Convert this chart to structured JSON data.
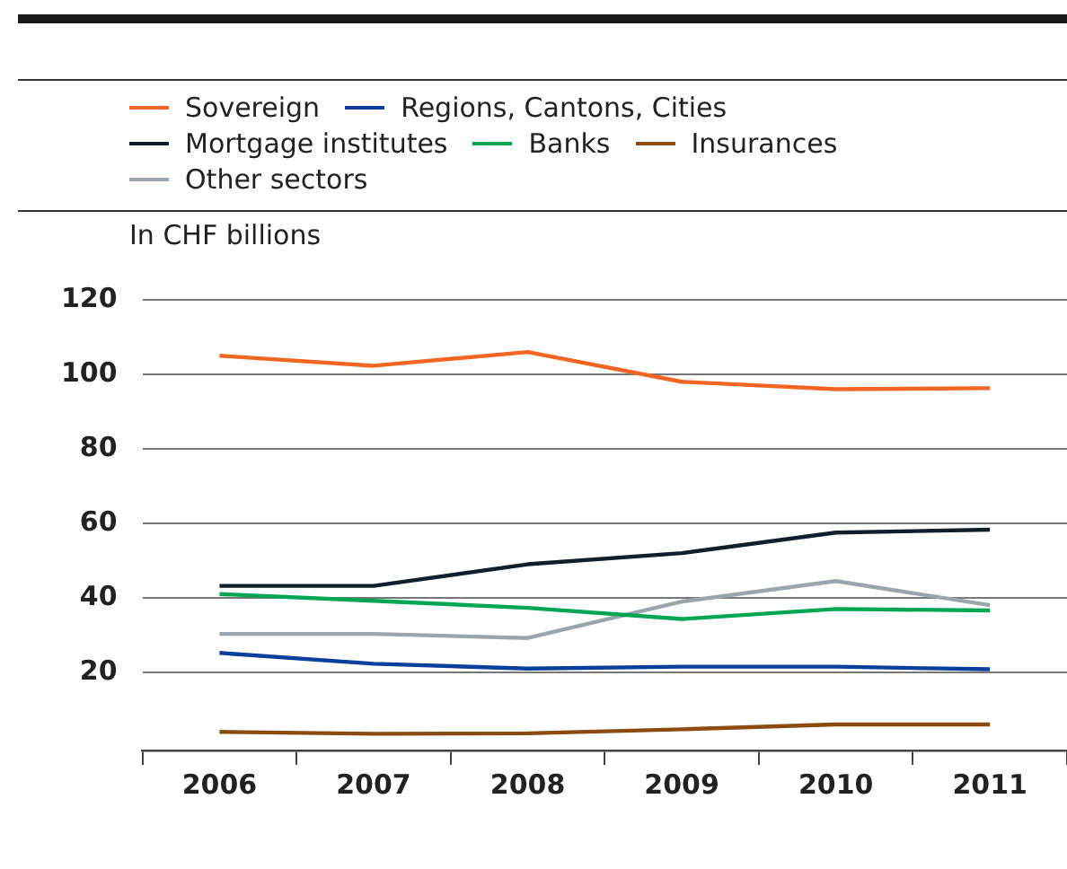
{
  "chart_data": {
    "type": "line",
    "ylabel": "In CHF billions",
    "categories": [
      "2006",
      "2007",
      "2008",
      "2009",
      "2010",
      "2011"
    ],
    "series": [
      {
        "name": "Sovereign",
        "color": "#f26522",
        "values": [
          105,
          102.3,
          106,
          98,
          96,
          96.3
        ]
      },
      {
        "name": "Regions, Cantons, Cities",
        "color": "#0a3f9c",
        "values": [
          25.2,
          22.3,
          21,
          21.5,
          21.5,
          20.8
        ]
      },
      {
        "name": "Mortgage institutes",
        "color": "#0f1f2b",
        "values": [
          43.2,
          43.2,
          49,
          52,
          57.5,
          58.3
        ]
      },
      {
        "name": "Banks",
        "color": "#00a651",
        "values": [
          41,
          39.2,
          37.3,
          34.3,
          37,
          36.6
        ]
      },
      {
        "name": "Insurances",
        "color": "#8b4a0f",
        "values": [
          4,
          3.5,
          3.6,
          4.7,
          6,
          6
        ]
      },
      {
        "name": "Other sectors",
        "color": "#9aa6ae",
        "values": [
          30.3,
          30.3,
          29.2,
          39,
          44.5,
          38
        ]
      }
    ],
    "ylim": [
      -1,
      120
    ],
    "yticks": [
      20,
      40,
      60,
      80,
      100,
      120
    ],
    "grid": "y",
    "legend": "top",
    "marker": "none",
    "line_style": "solid"
  }
}
